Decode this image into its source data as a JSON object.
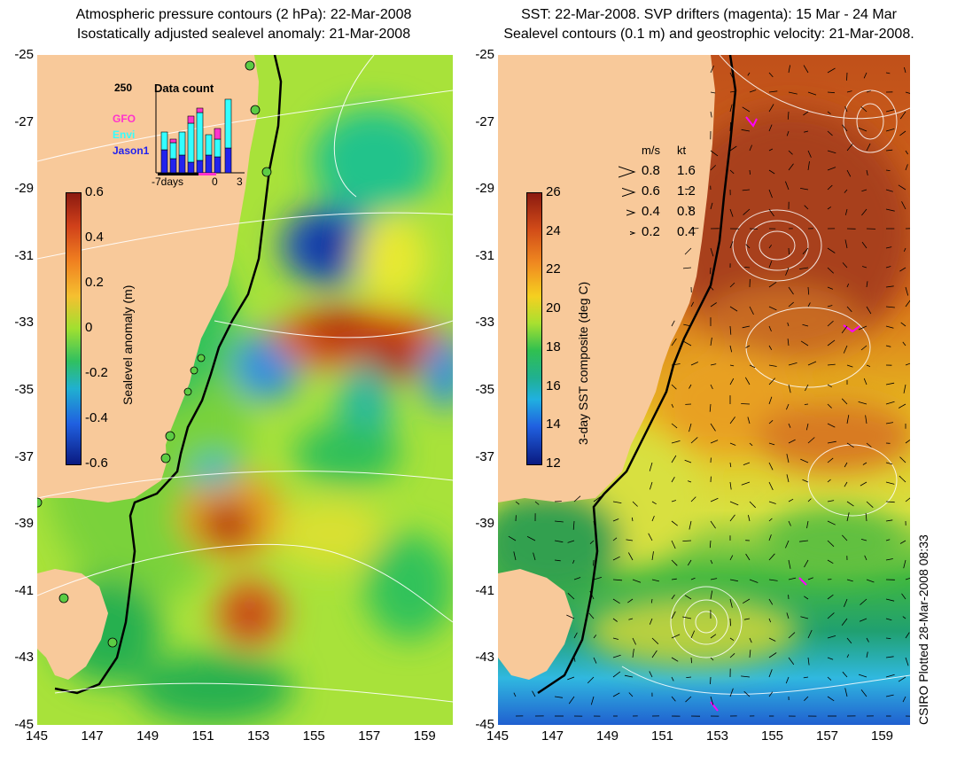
{
  "left_panel": {
    "title_line1": "Atmospheric pressure contours (2 hPa): 22-Mar-2008",
    "title_line2": "Isostatically adjusted sealevel anomaly: 21-Mar-2008",
    "colorbar": {
      "label": "Sealevel anomaly (m)",
      "ticks": [
        "0.6",
        "0.4",
        "0.2",
        "0",
        "-0.2",
        "-0.4",
        "-0.6"
      ]
    },
    "inset": {
      "title": "Data count",
      "ymax_label": "250",
      "legend": [
        {
          "name": "GFO",
          "color": "#ff33cc"
        },
        {
          "name": "Envi",
          "color": "#33ffff"
        },
        {
          "name": "Jason1",
          "color": "#2222ee"
        }
      ],
      "x_labels": [
        "-7days",
        "0",
        "3"
      ]
    }
  },
  "right_panel": {
    "title_line1": "SST: 22-Mar-2008. SVP drifters (magenta): 15 Mar - 24 Mar",
    "title_line2": "Sealevel contours (0.1 m) and geostrophic velocity: 21-Mar-2008.",
    "colorbar": {
      "label": "3-day SST composite (deg C)",
      "ticks": [
        "26",
        "24",
        "22",
        "20",
        "18",
        "16",
        "14",
        "12"
      ]
    },
    "velocity_key": {
      "header_ms": "m/s",
      "header_kt": "kt",
      "rows": [
        {
          "ms": "0.8",
          "kt": "1.6"
        },
        {
          "ms": "0.6",
          "kt": "1.2"
        },
        {
          "ms": "0.4",
          "kt": "0.8"
        },
        {
          "ms": "0.2",
          "kt": "0.4"
        }
      ]
    }
  },
  "axes": {
    "lat_labels": [
      "-25",
      "-27",
      "-29",
      "-31",
      "-33",
      "-35",
      "-37",
      "-39",
      "-41",
      "-43",
      "-45"
    ],
    "lon_labels": [
      "145",
      "147",
      "149",
      "151",
      "153",
      "155",
      "157",
      "159"
    ]
  },
  "credit": "CSIRO Plotted 28-Mar-2008 08:33",
  "colors": {
    "land": "#f8c99a",
    "coastline": "#000000",
    "contour": "#ffffff",
    "drifters": "#ff00ff"
  }
}
